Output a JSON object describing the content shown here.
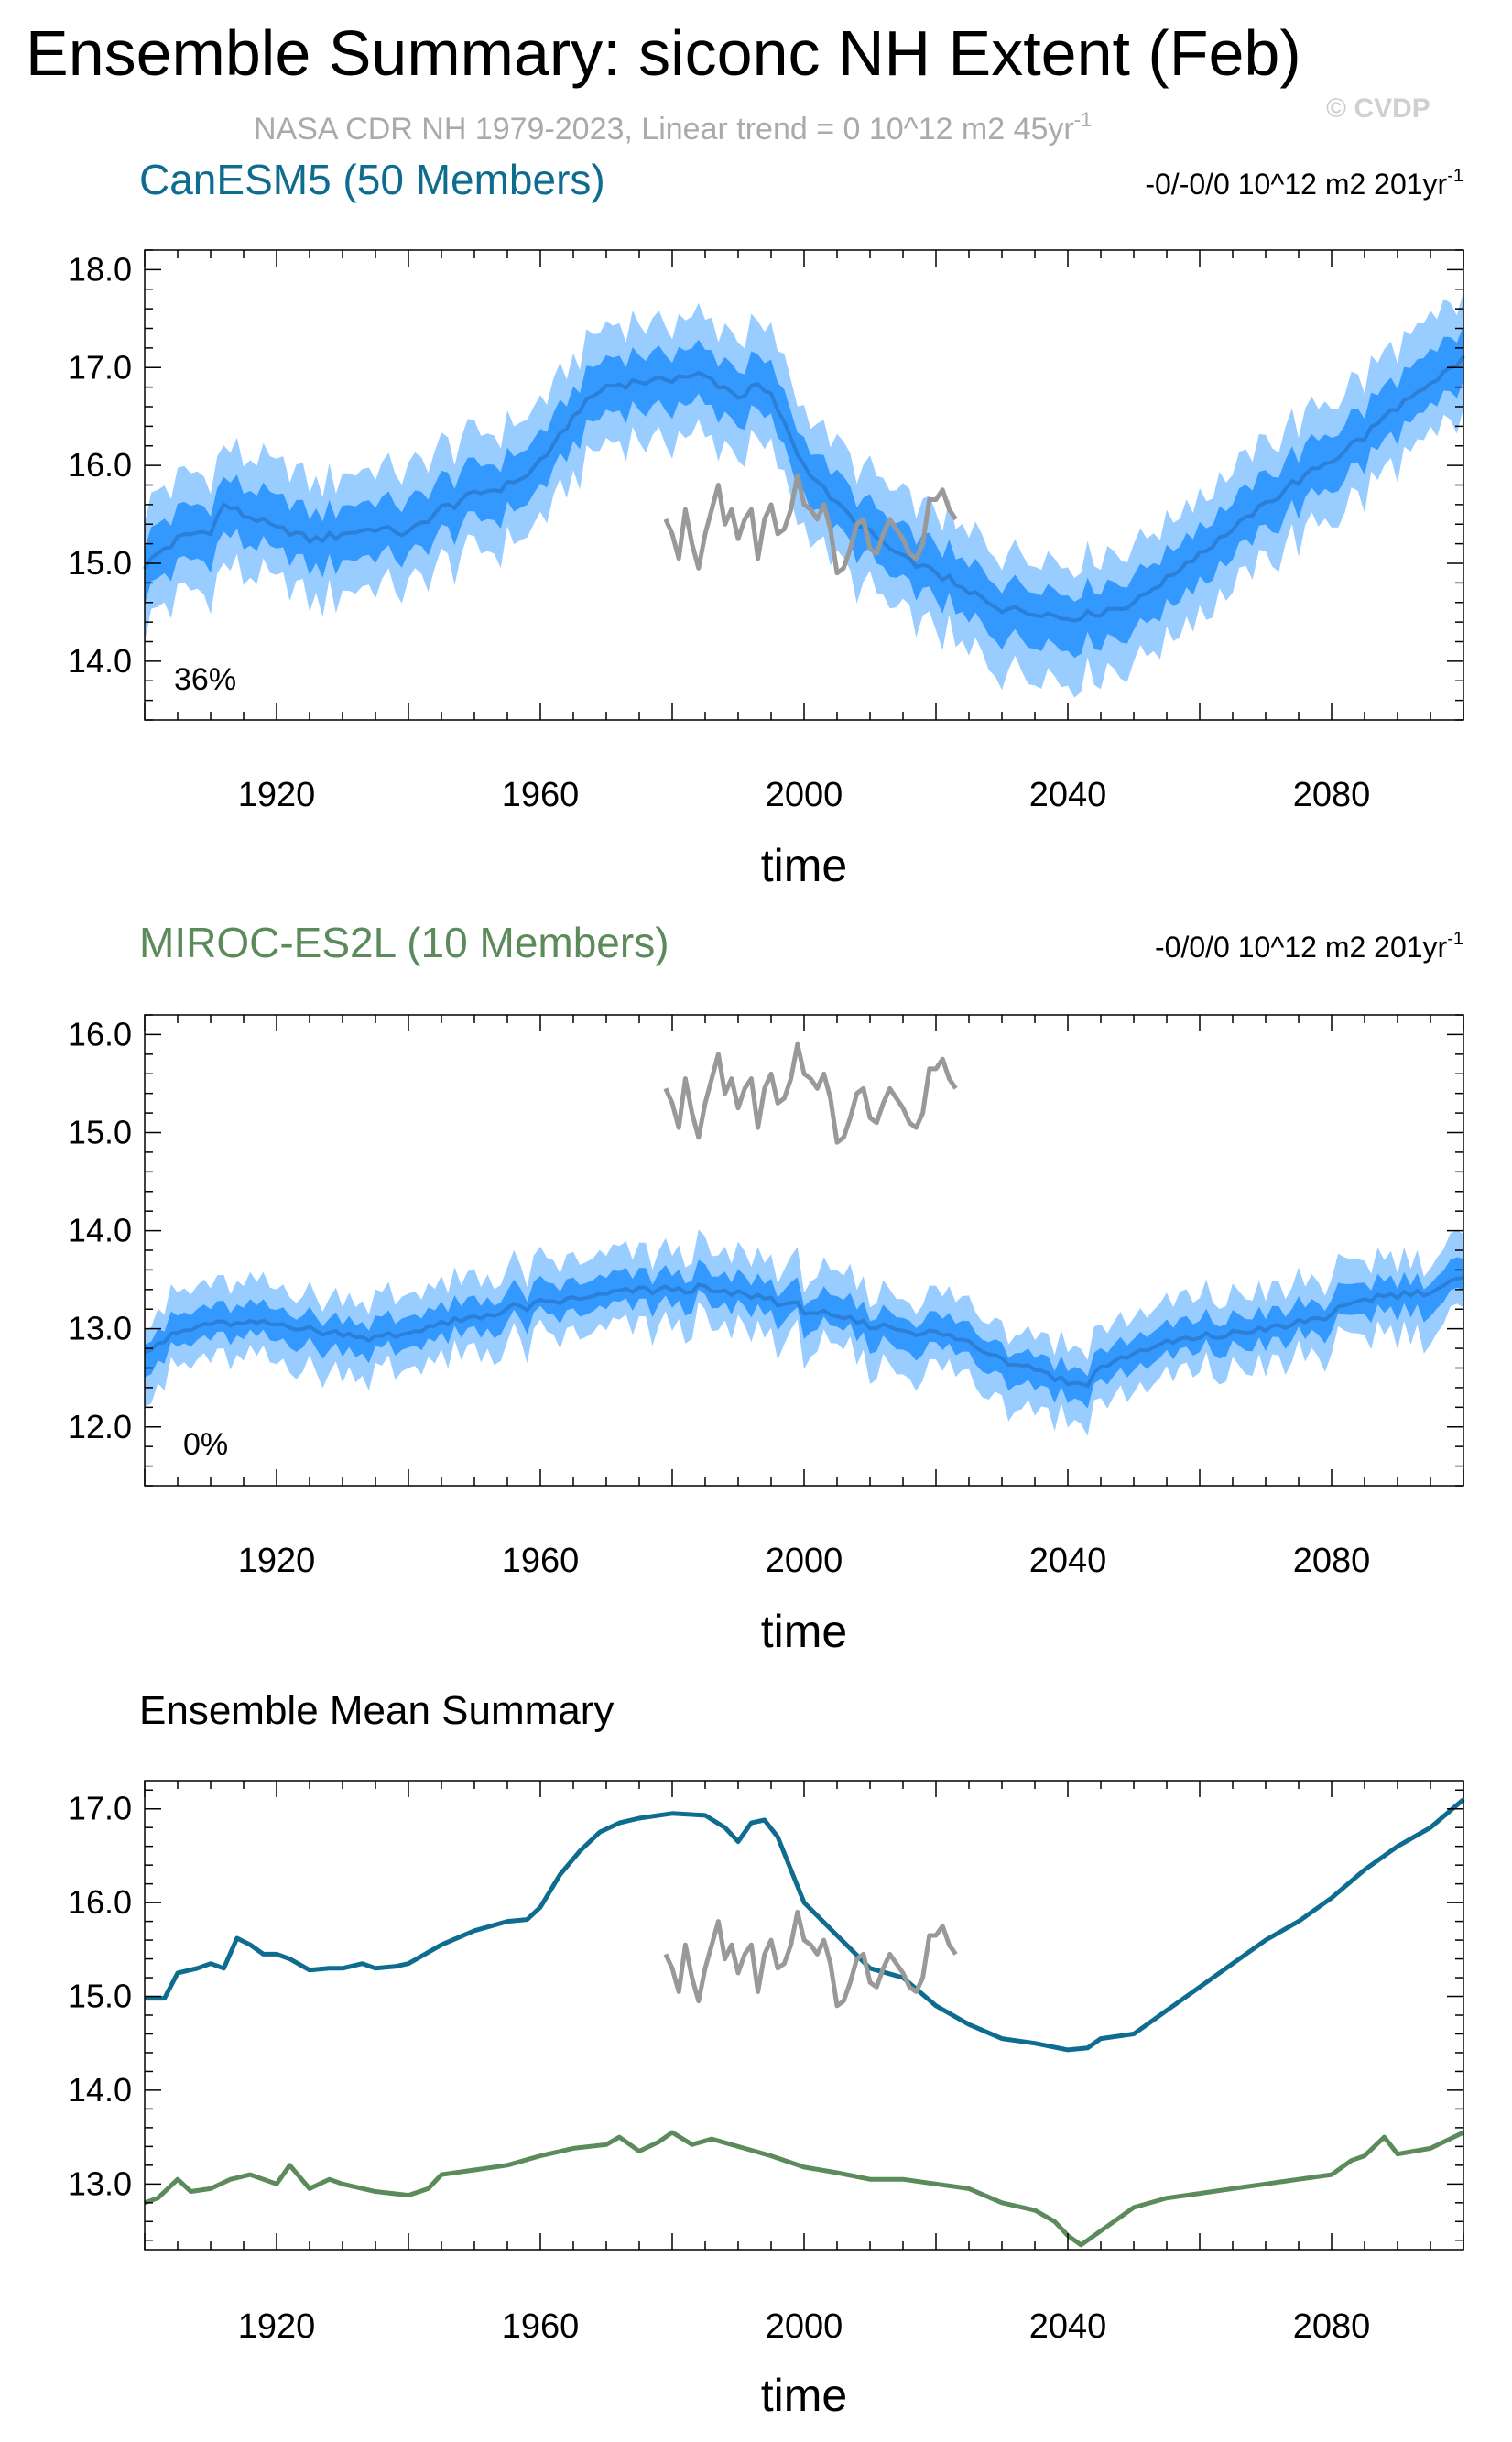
{
  "title": "Ensemble Summary: siconc NH Extent (Feb)",
  "subtitle": "NASA CDR NH 1979-2023, Linear trend = 0 10^12 m2 45yr",
  "subtitle_sup": "-1",
  "watermark": "© CVDP",
  "xlabel": "time",
  "colors": {
    "band_outer": "#99ccff",
    "band_inner": "#3399ff",
    "mean_line": "#2b7fd6",
    "obs": "#999999",
    "canesm": "#0e6d8f",
    "miroc": "#5b8a5b"
  },
  "chart_data": [
    {
      "type": "line",
      "panel": "CanESM5",
      "title": "CanESM5 (50 Members)",
      "trend_text": "-0/-0/0 10^12 m2 201yr",
      "trend_sup": "-1",
      "annotation": "36%",
      "xlim": [
        1900,
        2100
      ],
      "ylim": [
        13.4,
        18.2
      ],
      "xticks": [
        "1920",
        "1960",
        "2000",
        "2040",
        "2080"
      ],
      "yticks": [
        "14.0",
        "15.0",
        "16.0",
        "17.0",
        "18.0"
      ],
      "ensemble_mean": {
        "x": [
          1900,
          1905,
          1910,
          1912,
          1915,
          1920,
          1925,
          1930,
          1935,
          1940,
          1945,
          1950,
          1955,
          1958,
          1962,
          1966,
          1970,
          1975,
          1980,
          1985,
          1990,
          1993,
          1995,
          2000,
          2005,
          2010,
          2015,
          2020,
          2025,
          2030,
          2035,
          2040,
          2045,
          2050,
          2055,
          2060,
          2065,
          2070,
          2075,
          2080,
          2085,
          2090,
          2095,
          2100
        ],
        "y": [
          14.98,
          15.25,
          15.35,
          15.6,
          15.5,
          15.35,
          15.25,
          15.3,
          15.35,
          15.3,
          15.55,
          15.7,
          15.8,
          15.9,
          16.2,
          16.6,
          16.8,
          16.85,
          16.9,
          16.92,
          16.7,
          16.82,
          16.7,
          16.0,
          15.6,
          15.3,
          15.05,
          14.9,
          14.7,
          14.55,
          14.5,
          14.45,
          14.5,
          14.6,
          14.85,
          15.1,
          15.35,
          15.6,
          15.85,
          16.05,
          16.3,
          16.6,
          16.8,
          17.1
        ]
      },
      "inner_halfwidth": 0.28,
      "outer_halfwidth": 0.6,
      "observations": {
        "x": [
          1979,
          1980,
          1981,
          1982,
          1983,
          1984,
          1985,
          1986,
          1987,
          1988,
          1989,
          1990,
          1991,
          1992,
          1993,
          1994,
          1995,
          1996,
          1997,
          1998,
          1999,
          2000,
          2001,
          2002,
          2003,
          2004,
          2005,
          2006,
          2007,
          2008,
          2009,
          2010,
          2011,
          2012,
          2013,
          2014,
          2015,
          2016,
          2017,
          2018,
          2019,
          2020,
          2021,
          2022,
          2023
        ],
        "y": [
          15.45,
          15.3,
          15.05,
          15.55,
          15.2,
          14.95,
          15.3,
          15.55,
          15.8,
          15.4,
          15.55,
          15.25,
          15.45,
          15.55,
          15.05,
          15.45,
          15.6,
          15.3,
          15.35,
          15.55,
          15.9,
          15.6,
          15.55,
          15.45,
          15.6,
          15.35,
          14.9,
          14.95,
          15.15,
          15.4,
          15.45,
          15.15,
          15.1,
          15.3,
          15.45,
          15.35,
          15.25,
          15.1,
          15.05,
          15.2,
          15.65,
          15.65,
          15.75,
          15.55,
          15.45
        ]
      }
    },
    {
      "type": "line",
      "panel": "MIROC-ES2L",
      "title": "MIROC-ES2L (10 Members)",
      "trend_text": "-0/0/0 10^12 m2 201yr",
      "trend_sup": "-1",
      "annotation": "0%",
      "xlim": [
        1900,
        2100
      ],
      "ylim": [
        11.4,
        16.2
      ],
      "xticks": [
        "1920",
        "1960",
        "2000",
        "2040",
        "2080"
      ],
      "yticks": [
        "12.0",
        "13.0",
        "14.0",
        "15.0",
        "16.0"
      ],
      "ensemble_mean": {
        "x": [
          1900,
          1905,
          1910,
          1915,
          1920,
          1925,
          1930,
          1935,
          1940,
          1945,
          1950,
          1955,
          1960,
          1965,
          1970,
          1975,
          1980,
          1985,
          1990,
          1995,
          2000,
          2005,
          2010,
          2015,
          2020,
          2025,
          2030,
          2035,
          2040,
          2043,
          2045,
          2050,
          2055,
          2060,
          2065,
          2070,
          2075,
          2080,
          2085,
          2090,
          2095,
          2100
        ],
        "y": [
          12.8,
          12.95,
          13.05,
          13.05,
          13.05,
          13.0,
          12.95,
          12.9,
          12.95,
          13.05,
          13.1,
          13.2,
          13.25,
          13.3,
          13.35,
          13.4,
          13.4,
          13.4,
          13.35,
          13.3,
          13.2,
          13.1,
          13.05,
          13.0,
          12.95,
          12.85,
          12.7,
          12.6,
          12.45,
          12.45,
          12.6,
          12.75,
          12.85,
          12.9,
          12.95,
          13.0,
          13.05,
          13.15,
          13.3,
          13.35,
          13.4,
          13.5
        ]
      },
      "inner_halfwidth": 0.16,
      "outer_halfwidth": 0.38,
      "observations": {
        "x": [
          1979,
          1980,
          1981,
          1982,
          1983,
          1984,
          1985,
          1986,
          1987,
          1988,
          1989,
          1990,
          1991,
          1992,
          1993,
          1994,
          1995,
          1996,
          1997,
          1998,
          1999,
          2000,
          2001,
          2002,
          2003,
          2004,
          2005,
          2006,
          2007,
          2008,
          2009,
          2010,
          2011,
          2012,
          2013,
          2014,
          2015,
          2016,
          2017,
          2018,
          2019,
          2020,
          2021,
          2022,
          2023
        ],
        "y": [
          15.45,
          15.3,
          15.05,
          15.55,
          15.2,
          14.95,
          15.3,
          15.55,
          15.8,
          15.4,
          15.55,
          15.25,
          15.45,
          15.55,
          15.05,
          15.45,
          15.6,
          15.3,
          15.35,
          15.55,
          15.9,
          15.6,
          15.55,
          15.45,
          15.6,
          15.35,
          14.9,
          14.95,
          15.15,
          15.4,
          15.45,
          15.15,
          15.1,
          15.3,
          15.45,
          15.35,
          15.25,
          15.1,
          15.05,
          15.2,
          15.65,
          15.65,
          15.75,
          15.55,
          15.45
        ]
      }
    },
    {
      "type": "line",
      "panel": "Ensemble Mean Summary",
      "title": "Ensemble Mean Summary",
      "xlim": [
        1900,
        2100
      ],
      "ylim": [
        12.3,
        17.3
      ],
      "xticks": [
        "1920",
        "1960",
        "2000",
        "2040",
        "2080"
      ],
      "yticks": [
        "13.0",
        "14.0",
        "15.0",
        "16.0",
        "17.0"
      ],
      "series": [
        {
          "name": "CanESM5",
          "x": [
            1900,
            1903,
            1905,
            1908,
            1910,
            1912,
            1914,
            1916,
            1918,
            1920,
            1922,
            1925,
            1928,
            1930,
            1933,
            1935,
            1938,
            1940,
            1945,
            1950,
            1955,
            1958,
            1960,
            1963,
            1966,
            1969,
            1972,
            1975,
            1980,
            1985,
            1988,
            1990,
            1992,
            1994,
            1996,
            2000,
            2005,
            2010,
            2015,
            2020,
            2025,
            2030,
            2035,
            2040,
            2043,
            2045,
            2050,
            2055,
            2060,
            2065,
            2070,
            2075,
            2080,
            2085,
            2090,
            2095,
            2100
          ],
          "y": [
            14.98,
            14.98,
            15.25,
            15.3,
            15.35,
            15.3,
            15.62,
            15.55,
            15.45,
            15.45,
            15.4,
            15.28,
            15.3,
            15.3,
            15.35,
            15.3,
            15.32,
            15.35,
            15.55,
            15.7,
            15.8,
            15.82,
            15.95,
            16.3,
            16.55,
            16.75,
            16.85,
            16.9,
            16.95,
            16.93,
            16.8,
            16.65,
            16.85,
            16.88,
            16.7,
            16.0,
            15.65,
            15.3,
            15.2,
            14.9,
            14.7,
            14.55,
            14.5,
            14.43,
            14.45,
            14.55,
            14.6,
            14.85,
            15.1,
            15.35,
            15.6,
            15.8,
            16.05,
            16.35,
            16.6,
            16.8,
            17.1
          ]
        },
        {
          "name": "MIROC-ES2L",
          "x": [
            1900,
            1902,
            1905,
            1907,
            1910,
            1913,
            1916,
            1920,
            1922,
            1925,
            1928,
            1930,
            1935,
            1940,
            1943,
            1945,
            1950,
            1955,
            1960,
            1965,
            1970,
            1972,
            1975,
            1978,
            1980,
            1983,
            1986,
            1990,
            1995,
            2000,
            2005,
            2010,
            2015,
            2020,
            2025,
            2030,
            2035,
            2038,
            2040,
            2042,
            2045,
            2048,
            2050,
            2055,
            2060,
            2065,
            2070,
            2075,
            2080,
            2083,
            2085,
            2088,
            2090,
            2095,
            2100
          ],
          "y": [
            12.8,
            12.85,
            13.05,
            12.92,
            12.95,
            13.05,
            13.1,
            13.0,
            13.2,
            12.95,
            13.05,
            13.0,
            12.92,
            12.88,
            12.95,
            13.1,
            13.15,
            13.2,
            13.3,
            13.38,
            13.42,
            13.5,
            13.35,
            13.45,
            13.55,
            13.42,
            13.48,
            13.4,
            13.3,
            13.18,
            13.12,
            13.05,
            13.05,
            13.0,
            12.95,
            12.8,
            12.72,
            12.6,
            12.45,
            12.35,
            12.5,
            12.65,
            12.75,
            12.85,
            12.9,
            12.95,
            13.0,
            13.05,
            13.1,
            13.25,
            13.3,
            13.5,
            13.32,
            13.38,
            13.55
          ]
        },
        {
          "name": "NASA CDR NH",
          "x": [
            1979,
            1980,
            1981,
            1982,
            1983,
            1984,
            1985,
            1986,
            1987,
            1988,
            1989,
            1990,
            1991,
            1992,
            1993,
            1994,
            1995,
            1996,
            1997,
            1998,
            1999,
            2000,
            2001,
            2002,
            2003,
            2004,
            2005,
            2006,
            2007,
            2008,
            2009,
            2010,
            2011,
            2012,
            2013,
            2014,
            2015,
            2016,
            2017,
            2018,
            2019,
            2020,
            2021,
            2022,
            2023
          ],
          "y": [
            15.45,
            15.3,
            15.05,
            15.55,
            15.2,
            14.95,
            15.3,
            15.55,
            15.8,
            15.4,
            15.55,
            15.25,
            15.45,
            15.55,
            15.05,
            15.45,
            15.6,
            15.3,
            15.35,
            15.55,
            15.9,
            15.6,
            15.55,
            15.45,
            15.6,
            15.35,
            14.9,
            14.95,
            15.15,
            15.4,
            15.45,
            15.15,
            15.1,
            15.3,
            15.45,
            15.35,
            15.25,
            15.1,
            15.05,
            15.2,
            15.65,
            15.65,
            15.75,
            15.55,
            15.45
          ]
        }
      ]
    }
  ]
}
